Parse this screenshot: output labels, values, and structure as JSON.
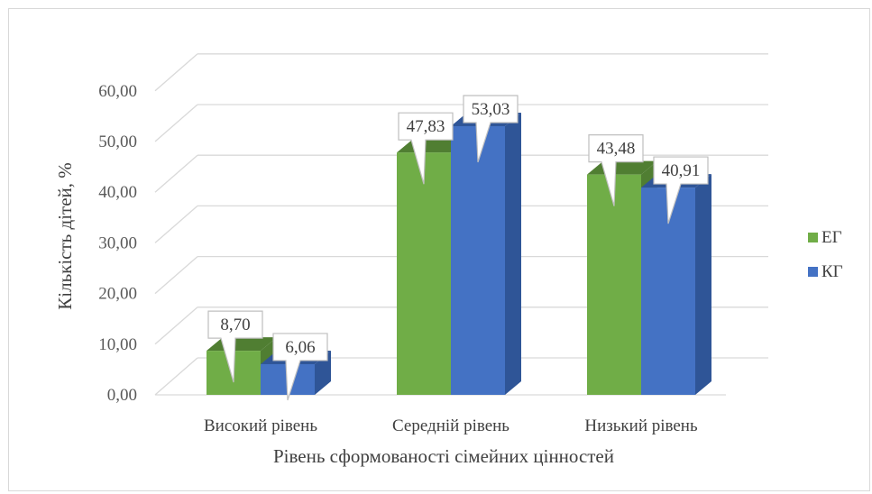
{
  "chart_data": {
    "type": "bar",
    "style": "3d-clustered-column",
    "categories": [
      "Високий рівень",
      "Середній рівень",
      "Низький рівень"
    ],
    "series": [
      {
        "name": "ЕГ",
        "values": [
          8.7,
          47.83,
          43.48
        ],
        "labels": [
          "8,70",
          "47,83",
          "43,48"
        ],
        "color": "#70ad47",
        "top_color": "#507e32",
        "side_color": "#507e32"
      },
      {
        "name": "КГ",
        "values": [
          6.06,
          53.03,
          40.91
        ],
        "labels": [
          "6,06",
          "53,03",
          "40,91"
        ],
        "color": "#4472c4",
        "top_color": "#2f5597",
        "side_color": "#2f5597"
      }
    ],
    "ylim": [
      0,
      60
    ],
    "yticks": [
      0,
      10,
      20,
      30,
      40,
      50,
      60
    ],
    "ytick_labels": [
      "0,00",
      "10,00",
      "20,00",
      "30,00",
      "40,00",
      "50,00",
      "60,00"
    ],
    "xlabel": "Рівень сформованості сімейних  цінностей",
    "ylabel": "Кількість дітей, %",
    "legend_position": "right",
    "grid": true,
    "grid_color": "#d9d9d9"
  }
}
